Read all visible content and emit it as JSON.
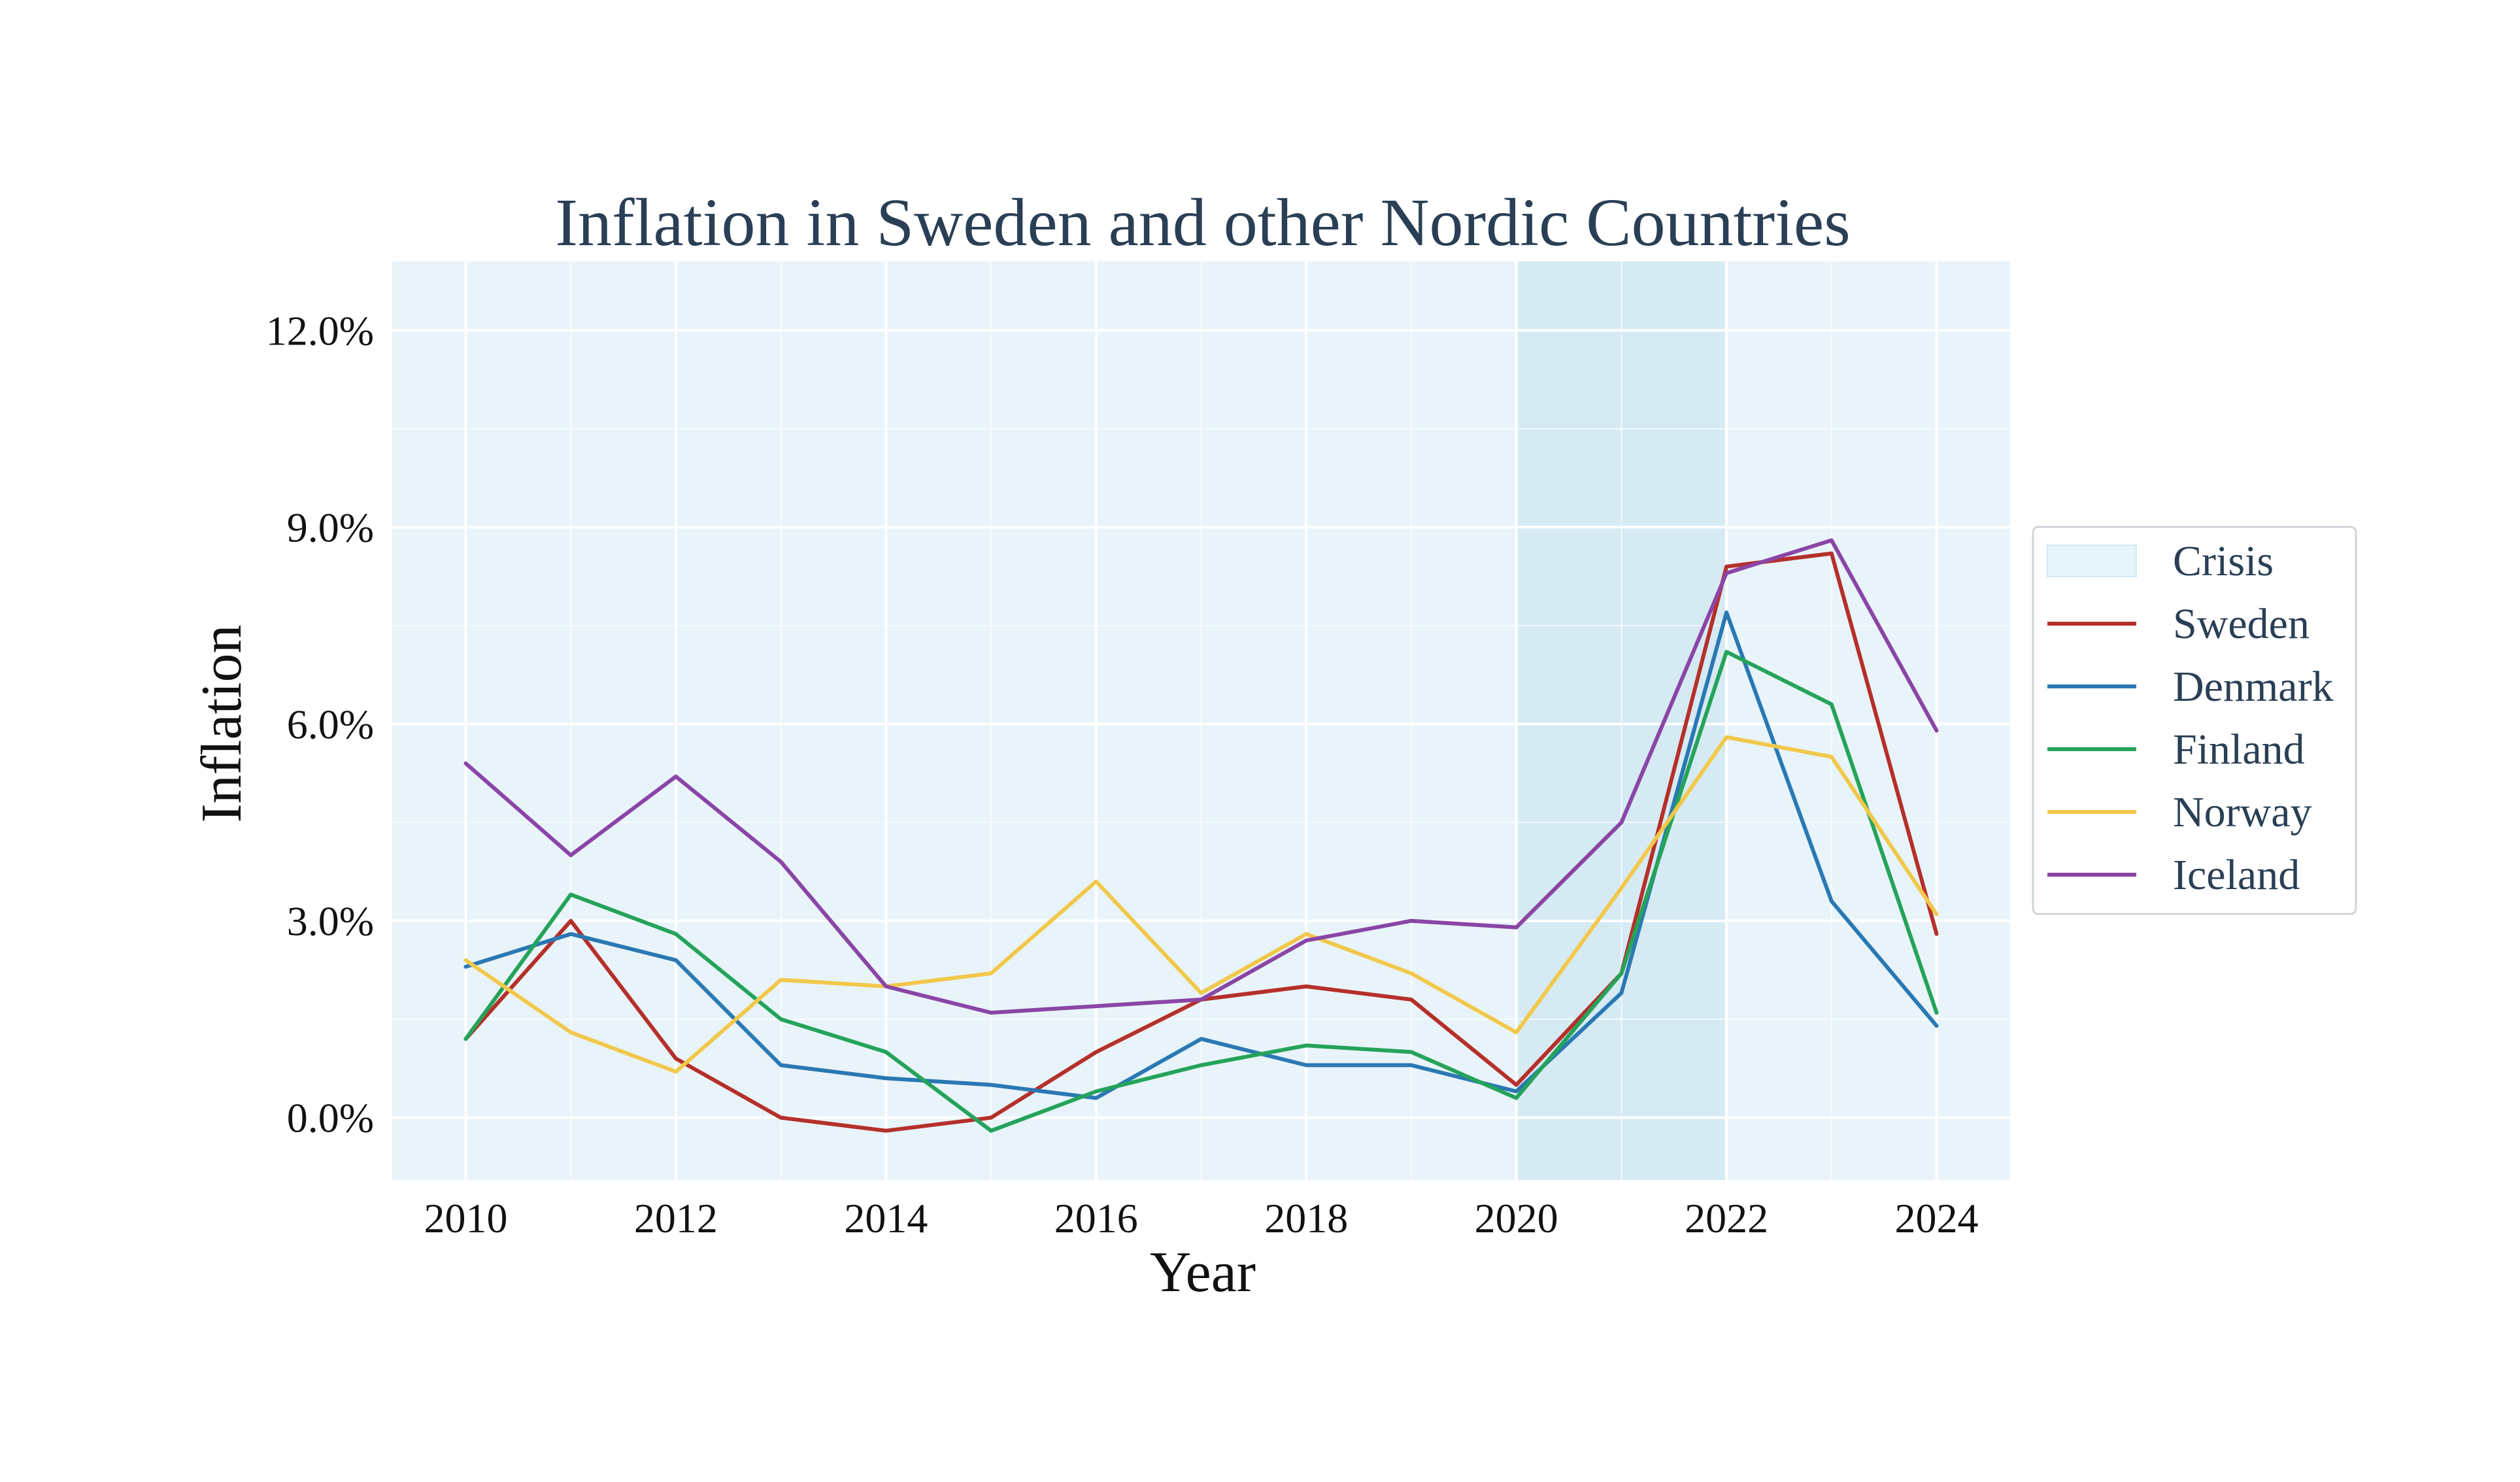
{
  "chart_data": {
    "type": "line",
    "title": "Inflation in Sweden and other Nordic Countries",
    "xlabel": "Year",
    "ylabel": "Inflation",
    "x": [
      2010,
      2011,
      2012,
      2013,
      2014,
      2015,
      2016,
      2017,
      2018,
      2019,
      2020,
      2021,
      2022,
      2023,
      2024
    ],
    "xlim": [
      2009.3,
      2024.7
    ],
    "ylim": [
      -0.95,
      13.05
    ],
    "x_ticks": [
      2010,
      2012,
      2014,
      2016,
      2018,
      2020,
      2022,
      2024
    ],
    "x_tick_labels": [
      "2010",
      "2012",
      "2014",
      "2016",
      "2018",
      "2020",
      "2022",
      "2024"
    ],
    "y_ticks": [
      0,
      3,
      6,
      9,
      12
    ],
    "y_tick_labels": [
      "0.0%",
      "3.0%",
      "6.0%",
      "9.0%",
      "12.0%"
    ],
    "grid": true,
    "plot_background": "#e8f4fa",
    "legend_position": "right",
    "shaded_region": {
      "name": "Crisis",
      "x_start": 2020,
      "x_end": 2022,
      "color": "#d6eaf3"
    },
    "series": [
      {
        "name": "Sweden",
        "color": "#b5302a",
        "values": [
          1.2,
          3.0,
          0.9,
          0.0,
          -0.2,
          0.0,
          1.0,
          1.8,
          2.0,
          1.8,
          0.5,
          2.2,
          8.4,
          8.6,
          2.8
        ]
      },
      {
        "name": "Denmark",
        "color": "#2a78b3",
        "values": [
          2.3,
          2.8,
          2.4,
          0.8,
          0.6,
          0.5,
          0.3,
          1.2,
          0.8,
          0.8,
          0.4,
          1.9,
          7.7,
          3.3,
          1.4
        ]
      },
      {
        "name": "Finland",
        "color": "#25a35a",
        "values": [
          1.2,
          3.4,
          2.8,
          1.5,
          1.0,
          -0.2,
          0.4,
          0.8,
          1.1,
          1.0,
          0.3,
          2.2,
          7.1,
          6.3,
          1.6
        ]
      },
      {
        "name": "Norway",
        "color": "#f2c84b",
        "values": [
          2.4,
          1.3,
          0.7,
          2.1,
          2.0,
          2.2,
          3.6,
          1.9,
          2.8,
          2.2,
          1.3,
          3.5,
          5.8,
          5.5,
          3.1
        ]
      },
      {
        "name": "Iceland",
        "color": "#8a45a6",
        "values": [
          5.4,
          4.0,
          5.2,
          3.9,
          2.0,
          1.6,
          1.7,
          1.8,
          2.7,
          3.0,
          2.9,
          4.5,
          8.3,
          8.8,
          5.9
        ]
      }
    ]
  }
}
